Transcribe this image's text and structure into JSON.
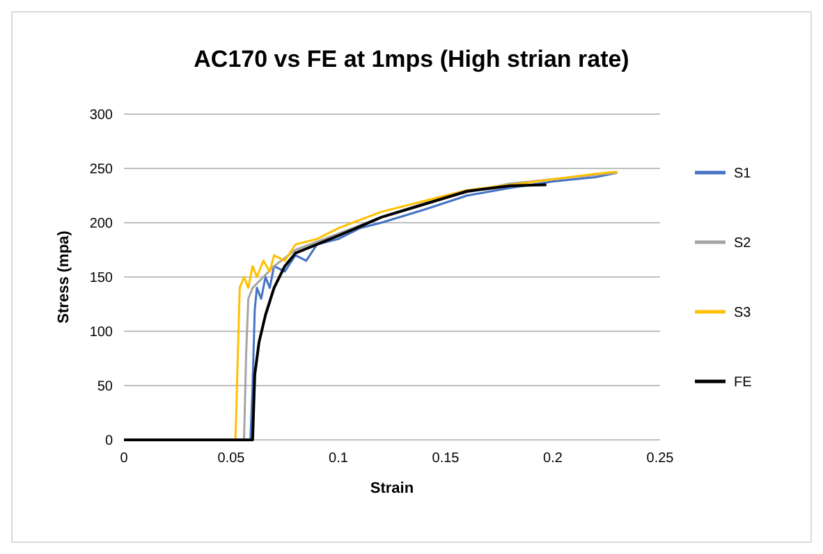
{
  "chart_data": {
    "type": "line",
    "title": "AC170 vs FE at 1mps (High strian rate)",
    "xlabel": "Strain",
    "ylabel": "Stress (mpa)",
    "xlim": [
      0,
      0.25
    ],
    "xticks": [
      0,
      0.05,
      0.1,
      0.15,
      0.2,
      0.25
    ],
    "ylim": [
      0,
      300
    ],
    "yticks": [
      0,
      50,
      100,
      150,
      200,
      250,
      300
    ],
    "grid": "y",
    "legend": "right",
    "marker": "none",
    "line_style": "solid",
    "series": [
      {
        "name": "S1",
        "color": "#4472c4",
        "x": [
          0,
          0.059,
          0.06,
          0.061,
          0.062,
          0.064,
          0.066,
          0.068,
          0.07,
          0.075,
          0.08,
          0.085,
          0.09,
          0.1,
          0.11,
          0.12,
          0.14,
          0.16,
          0.18,
          0.2,
          0.22,
          0.23
        ],
        "values": [
          0,
          0,
          50,
          120,
          140,
          130,
          150,
          140,
          160,
          155,
          170,
          165,
          180,
          185,
          195,
          200,
          212,
          225,
          232,
          238,
          242,
          246
        ]
      },
      {
        "name": "S2",
        "color": "#a5a5a5",
        "x": [
          0,
          0.056,
          0.057,
          0.058,
          0.06,
          0.065,
          0.07,
          0.08,
          0.1,
          0.12,
          0.14,
          0.16,
          0.18,
          0.2,
          0.22,
          0.23
        ],
        "values": [
          0,
          0,
          80,
          130,
          140,
          150,
          160,
          175,
          190,
          205,
          218,
          228,
          236,
          240,
          244,
          246
        ]
      },
      {
        "name": "S3",
        "color": "#ffc000",
        "x": [
          0,
          0.052,
          0.053,
          0.054,
          0.056,
          0.058,
          0.06,
          0.062,
          0.065,
          0.068,
          0.07,
          0.075,
          0.08,
          0.09,
          0.1,
          0.12,
          0.14,
          0.16,
          0.18,
          0.2,
          0.22,
          0.23
        ],
        "values": [
          0,
          0,
          70,
          140,
          150,
          140,
          160,
          150,
          165,
          155,
          170,
          165,
          180,
          185,
          195,
          210,
          220,
          230,
          235,
          240,
          245,
          247
        ]
      },
      {
        "name": "FE",
        "color": "#000000",
        "x": [
          0,
          0.06,
          0.061,
          0.063,
          0.066,
          0.07,
          0.075,
          0.08,
          0.09,
          0.1,
          0.12,
          0.14,
          0.16,
          0.18,
          0.197
        ],
        "values": [
          0,
          0,
          60,
          90,
          115,
          140,
          160,
          172,
          180,
          188,
          205,
          217,
          229,
          234,
          235
        ]
      }
    ]
  }
}
